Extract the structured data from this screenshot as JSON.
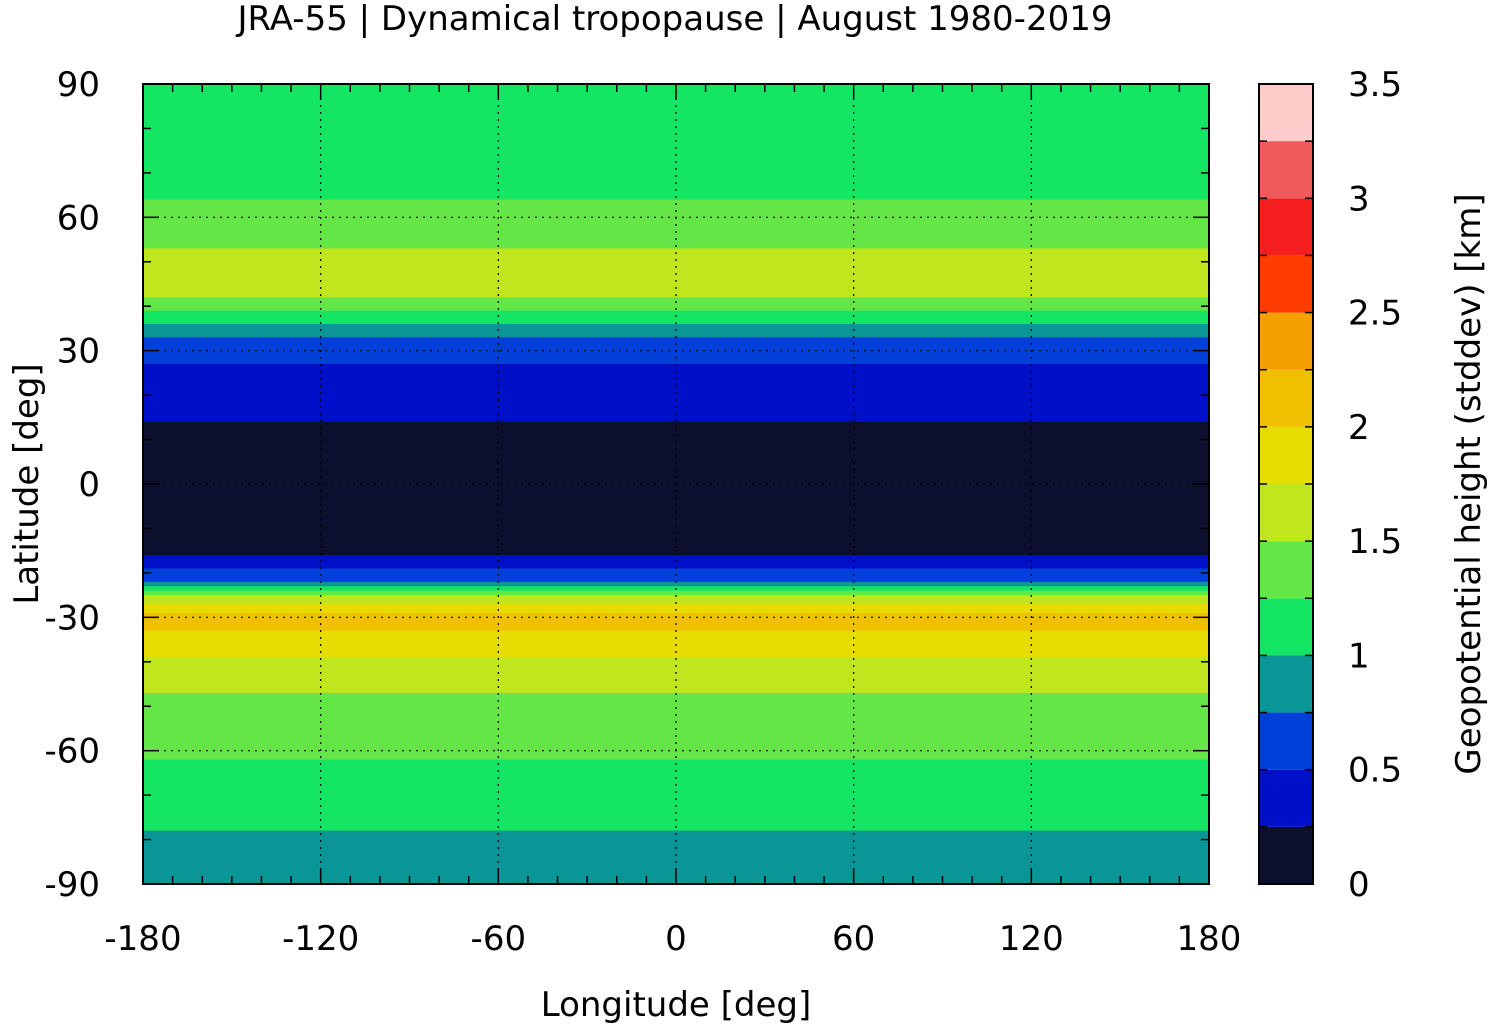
{
  "title": "JRA-55 | Dynamical tropopause | August 1980-2019",
  "x_axis": {
    "label": "Longitude [deg]",
    "range": [
      -180,
      180
    ],
    "ticks": [
      {
        "value": -180,
        "label": "-180"
      },
      {
        "value": -120,
        "label": "-120"
      },
      {
        "value": -60,
        "label": "-60"
      },
      {
        "value": 0,
        "label": "0"
      },
      {
        "value": 60,
        "label": "60"
      },
      {
        "value": 120,
        "label": "120"
      },
      {
        "value": 180,
        "label": "180"
      }
    ]
  },
  "y_axis": {
    "label": "Latitude [deg]",
    "range": [
      -90,
      90
    ],
    "ticks": [
      {
        "value": 90,
        "label": "90"
      },
      {
        "value": 60,
        "label": "60"
      },
      {
        "value": 30,
        "label": "30"
      },
      {
        "value": 0,
        "label": "0"
      },
      {
        "value": -30,
        "label": "-30"
      },
      {
        "value": -60,
        "label": "-60"
      },
      {
        "value": -90,
        "label": "-90"
      }
    ]
  },
  "colorbar": {
    "label": "Geopotential height (stddev) [km]",
    "range": [
      0,
      3.5
    ],
    "ticks": [
      {
        "value": 0,
        "label": "0"
      },
      {
        "value": 0.5,
        "label": "0.5"
      },
      {
        "value": 1,
        "label": "1"
      },
      {
        "value": 1.5,
        "label": "1.5"
      },
      {
        "value": 2,
        "label": "2"
      },
      {
        "value": 2.5,
        "label": "2.5"
      },
      {
        "value": 3,
        "label": "3"
      },
      {
        "value": 3.5,
        "label": "3.5"
      }
    ],
    "levels": [
      {
        "from": 0.0,
        "to": 0.25,
        "color": "#0c0f2e"
      },
      {
        "from": 0.25,
        "to": 0.5,
        "color": "#0010c8"
      },
      {
        "from": 0.5,
        "to": 0.75,
        "color": "#0040d8"
      },
      {
        "from": 0.75,
        "to": 1.0,
        "color": "#0a9696"
      },
      {
        "from": 1.0,
        "to": 1.25,
        "color": "#14e664"
      },
      {
        "from": 1.25,
        "to": 1.5,
        "color": "#64e646"
      },
      {
        "from": 1.5,
        "to": 1.75,
        "color": "#c0e61e"
      },
      {
        "from": 1.75,
        "to": 2.0,
        "color": "#e6dc00"
      },
      {
        "from": 2.0,
        "to": 2.25,
        "color": "#f0c000"
      },
      {
        "from": 2.25,
        "to": 2.5,
        "color": "#f5a000"
      },
      {
        "from": 2.5,
        "to": 2.75,
        "color": "#ff3c00"
      },
      {
        "from": 2.75,
        "to": 3.0,
        "color": "#f51e1e"
      },
      {
        "from": 3.0,
        "to": 3.25,
        "color": "#f05a5a"
      },
      {
        "from": 3.25,
        "to": 3.5,
        "color": "#ffcccc"
      }
    ]
  },
  "field": {
    "description_level_by_latitude": [
      {
        "lat": 90,
        "level": 1.1
      },
      {
        "lat": 75,
        "level": 1.1
      },
      {
        "lat": 60,
        "level": 1.3
      },
      {
        "lat": 50,
        "level": 1.6
      },
      {
        "lat": 45,
        "level": 1.7
      },
      {
        "lat": 38,
        "level": 1.2
      },
      {
        "lat": 32,
        "level": 0.7
      },
      {
        "lat": 25,
        "level": 0.4
      },
      {
        "lat": 15,
        "level": 0.3
      },
      {
        "lat": 10,
        "level": 0.1
      },
      {
        "lat": 0,
        "level": 0.1
      },
      {
        "lat": -12,
        "level": 0.1
      },
      {
        "lat": -18,
        "level": 0.35
      },
      {
        "lat": -22,
        "level": 0.8
      },
      {
        "lat": -26,
        "level": 1.6
      },
      {
        "lat": -30,
        "level": 2.15
      },
      {
        "lat": -35,
        "level": 1.9
      },
      {
        "lat": -42,
        "level": 1.6
      },
      {
        "lat": -55,
        "level": 1.35
      },
      {
        "lat": -66,
        "level": 1.2
      },
      {
        "lat": -75,
        "level": 1.05
      },
      {
        "lat": -85,
        "level": 0.9
      },
      {
        "lat": -90,
        "level": 0.9
      }
    ]
  }
}
